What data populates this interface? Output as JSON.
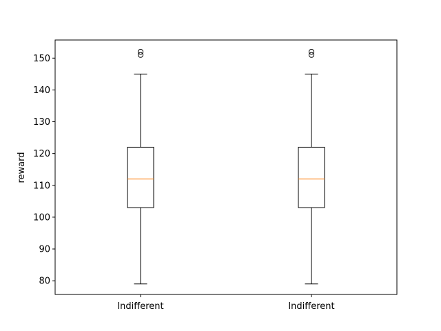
{
  "chart_data": {
    "type": "boxplot",
    "ylabel": "reward",
    "ylim": [
      75.7,
      155.7
    ],
    "yticks": [
      80,
      90,
      100,
      110,
      120,
      130,
      140,
      150
    ],
    "grid": false,
    "categories": [
      "Indifferent",
      "Indifferent"
    ],
    "boxes": [
      {
        "label": "Indifferent",
        "whisker_low": 79,
        "q1": 103,
        "median": 112,
        "q3": 122,
        "whisker_high": 145,
        "outliers": [
          151,
          152
        ]
      },
      {
        "label": "Indifferent",
        "whisker_low": 79,
        "q1": 103,
        "median": 112,
        "q3": 122,
        "whisker_high": 145,
        "outliers": [
          151,
          152
        ]
      }
    ],
    "colors": {
      "box": "#000000",
      "median": "#ff7f0e",
      "outlier": "#000000"
    }
  }
}
